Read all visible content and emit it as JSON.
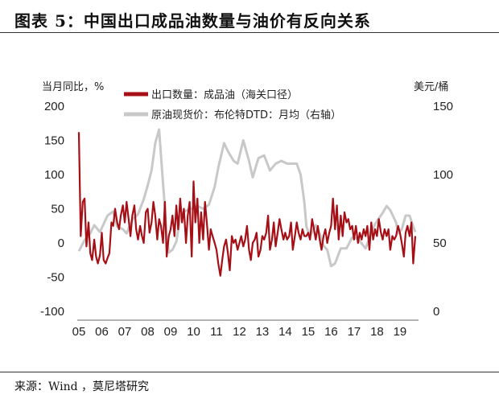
{
  "title": "图表 5：中国出口成品油数量与油价有反向关系",
  "source": "来源：Wind ，莫尼塔研究",
  "chart_data": {
    "type": "line",
    "left_unit": "当月同比，%",
    "right_unit": "美元/桶",
    "left_ylim": [
      -100,
      200
    ],
    "right_ylim": [
      0,
      150
    ],
    "left_ticks": [
      "200",
      "150",
      "100",
      "50",
      "0",
      "-50",
      "-100"
    ],
    "right_ticks": [
      "150",
      "100",
      "50",
      "0"
    ],
    "x_ticks": [
      "05",
      "06",
      "07",
      "08",
      "09",
      "10",
      "11",
      "12",
      "13",
      "14",
      "15",
      "16",
      "17",
      "18",
      "19"
    ],
    "xlim": [
      2005.0,
      2019.67
    ],
    "grid": false,
    "legend_position": "top",
    "series": [
      {
        "name": "出口数量：成品油（海关口径）",
        "axis": "left",
        "color": "#a50f15",
        "x": [
          2005.0,
          2005.08,
          2005.17,
          2005.25,
          2005.33,
          2005.42,
          2005.5,
          2005.58,
          2005.67,
          2005.75,
          2005.83,
          2005.92,
          2006.0,
          2006.08,
          2006.17,
          2006.25,
          2006.33,
          2006.42,
          2006.5,
          2006.58,
          2006.67,
          2006.75,
          2006.83,
          2006.92,
          2007.0,
          2007.08,
          2007.17,
          2007.25,
          2007.33,
          2007.42,
          2007.5,
          2007.58,
          2007.67,
          2007.75,
          2007.83,
          2007.92,
          2008.0,
          2008.08,
          2008.17,
          2008.25,
          2008.33,
          2008.42,
          2008.5,
          2008.58,
          2008.67,
          2008.75,
          2008.83,
          2008.92,
          2009.0,
          2009.08,
          2009.17,
          2009.25,
          2009.33,
          2009.42,
          2009.5,
          2009.58,
          2009.67,
          2009.75,
          2009.83,
          2009.92,
          2010.0,
          2010.08,
          2010.17,
          2010.25,
          2010.33,
          2010.42,
          2010.5,
          2010.58,
          2010.67,
          2010.75,
          2010.83,
          2010.92,
          2011.0,
          2011.08,
          2011.17,
          2011.25,
          2011.33,
          2011.42,
          2011.5,
          2011.58,
          2011.67,
          2011.75,
          2011.83,
          2011.92,
          2012.0,
          2012.08,
          2012.17,
          2012.25,
          2012.33,
          2012.42,
          2012.5,
          2012.58,
          2012.67,
          2012.75,
          2012.83,
          2012.92,
          2013.0,
          2013.08,
          2013.17,
          2013.25,
          2013.33,
          2013.42,
          2013.5,
          2013.58,
          2013.67,
          2013.75,
          2013.83,
          2013.92,
          2014.0,
          2014.08,
          2014.17,
          2014.25,
          2014.33,
          2014.42,
          2014.5,
          2014.58,
          2014.67,
          2014.75,
          2014.83,
          2014.92,
          2015.0,
          2015.08,
          2015.17,
          2015.25,
          2015.33,
          2015.42,
          2015.5,
          2015.58,
          2015.67,
          2015.75,
          2015.83,
          2015.92,
          2016.0,
          2016.08,
          2016.17,
          2016.25,
          2016.33,
          2016.42,
          2016.5,
          2016.58,
          2016.67,
          2016.75,
          2016.83,
          2016.92,
          2017.0,
          2017.08,
          2017.17,
          2017.25,
          2017.33,
          2017.42,
          2017.5,
          2017.58,
          2017.67,
          2017.75,
          2017.83,
          2017.92,
          2018.0,
          2018.08,
          2018.17,
          2018.25,
          2018.33,
          2018.42,
          2018.5,
          2018.58,
          2018.67,
          2018.75,
          2018.83,
          2018.92,
          2019.0,
          2019.08,
          2019.17,
          2019.25,
          2019.33,
          2019.42,
          2019.5,
          2019.58,
          2019.67
        ],
        "y": [
          162,
          10,
          60,
          65,
          -5,
          30,
          -15,
          -25,
          5,
          -20,
          -30,
          -18,
          15,
          -25,
          -30,
          -22,
          -15,
          30,
          25,
          50,
          30,
          20,
          40,
          55,
          30,
          60,
          35,
          10,
          40,
          55,
          20,
          5,
          25,
          10,
          0,
          45,
          50,
          15,
          30,
          60,
          40,
          5,
          35,
          25,
          0,
          60,
          -20,
          10,
          20,
          40,
          10,
          55,
          20,
          65,
          30,
          50,
          0,
          40,
          60,
          -20,
          90,
          30,
          65,
          0,
          45,
          5,
          60,
          30,
          -10,
          20,
          10,
          0,
          -10,
          -30,
          -48,
          -25,
          -5,
          5,
          -15,
          -40,
          10,
          0,
          5,
          -10,
          0,
          10,
          -5,
          5,
          25,
          -10,
          -25,
          0,
          5,
          15,
          -20,
          -10,
          10,
          5,
          15,
          40,
          -10,
          5,
          30,
          -5,
          15,
          35,
          20,
          5,
          15,
          5,
          10,
          30,
          -10,
          10,
          30,
          15,
          5,
          20,
          10,
          10,
          15,
          5,
          35,
          20,
          5,
          25,
          5,
          -10,
          10,
          20,
          0,
          15,
          25,
          65,
          20,
          55,
          5,
          40,
          10,
          45,
          30,
          35,
          20,
          25,
          5,
          25,
          0,
          15,
          5,
          20,
          10,
          25,
          -10,
          30,
          5,
          20,
          10,
          35,
          15,
          5,
          20,
          10,
          20,
          -10,
          10,
          5,
          10,
          25,
          15,
          0,
          -20,
          15,
          25,
          10,
          30,
          -30,
          10
        ]
      },
      {
        "name": "原油现货价：布伦特DTD：月均（右轴）",
        "axis": "right",
        "color": "#c8c8c8",
        "x": [
          2005.0,
          2005.25,
          2005.5,
          2005.67,
          2005.92,
          2006.25,
          2006.5,
          2006.67,
          2006.92,
          2007.08,
          2007.33,
          2007.58,
          2007.83,
          2008.0,
          2008.17,
          2008.33,
          2008.5,
          2008.58,
          2008.75,
          2008.83,
          2008.92,
          2009.08,
          2009.25,
          2009.42,
          2009.58,
          2009.75,
          2009.92,
          2010.17,
          2010.42,
          2010.67,
          2010.92,
          2011.08,
          2011.33,
          2011.5,
          2011.75,
          2011.92,
          2012.17,
          2012.42,
          2012.58,
          2012.83,
          2013.08,
          2013.33,
          2013.58,
          2013.83,
          2014.08,
          2014.33,
          2014.5,
          2014.67,
          2014.83,
          2014.92,
          2015.08,
          2015.33,
          2015.5,
          2015.67,
          2015.83,
          2016.0,
          2016.17,
          2016.42,
          2016.67,
          2016.92,
          2017.17,
          2017.5,
          2017.75,
          2017.92,
          2018.25,
          2018.42,
          2018.58,
          2018.83,
          2018.92,
          2019.08,
          2019.25,
          2019.42,
          2019.58,
          2019.67
        ],
        "y": [
          44,
          52,
          57,
          63,
          58,
          70,
          73,
          62,
          60,
          57,
          67,
          71,
          82,
          92,
          103,
          123,
          133,
          114,
          75,
          55,
          43,
          45,
          51,
          69,
          73,
          74,
          75,
          77,
          75,
          78,
          91,
          105,
          123,
          117,
          110,
          108,
          125,
          110,
          98,
          112,
          114,
          103,
          108,
          110,
          108,
          108,
          108,
          100,
          80,
          62,
          55,
          63,
          57,
          48,
          45,
          33,
          35,
          46,
          46,
          54,
          53,
          46,
          57,
          64,
          72,
          77,
          74,
          65,
          57,
          60,
          70,
          70,
          62,
          58
        ]
      }
    ]
  }
}
